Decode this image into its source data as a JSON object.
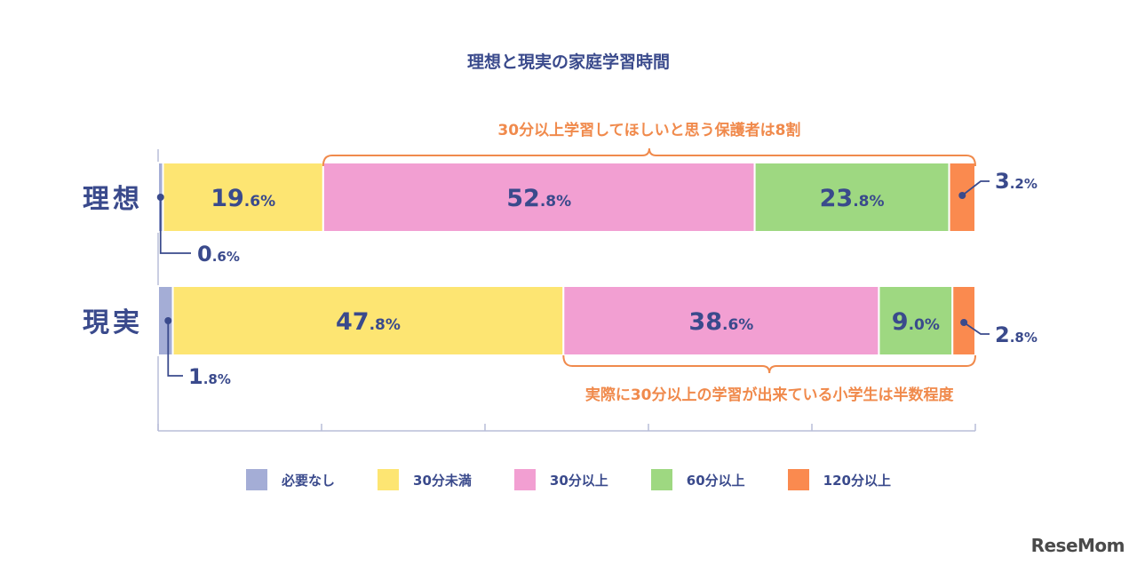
{
  "colors": {
    "none": "#a4add6",
    "under30": "#fde572",
    "over30": "#f29fd2",
    "over60": "#9ed881",
    "over120": "#fa8a4f",
    "text": "#3a4a8c",
    "accent": "#f08a4c",
    "axis": "#b8bdd8"
  },
  "logo": "ReseMom",
  "chart_data": {
    "type": "bar",
    "orientation": "horizontal",
    "stacked": true,
    "title": "理想と現実の家庭学習時間",
    "categories": [
      "理想",
      "現実"
    ],
    "xlim": [
      0,
      100
    ],
    "unit": "%",
    "series": [
      {
        "name": "必要なし",
        "values": [
          0.6,
          1.8
        ]
      },
      {
        "name": "30分未満",
        "values": [
          19.6,
          47.8
        ]
      },
      {
        "name": "30分以上",
        "values": [
          52.8,
          38.6
        ]
      },
      {
        "name": "60分以上",
        "values": [
          23.8,
          9.0
        ]
      },
      {
        "name": "120分以上",
        "values": [
          3.2,
          2.8
        ]
      }
    ],
    "data_labels": [
      [
        "0.6%",
        "19.6%",
        "52.8%",
        "23.8%",
        "3.2%"
      ],
      [
        "1.8%",
        "47.8%",
        "38.6%",
        "9.0%",
        "2.8%"
      ]
    ],
    "annotations": [
      "30分以上学習してほしいと思う保護者は8割",
      "実際に30分以上の学習が出来ている小学生は半数程度"
    ],
    "legend_position": "bottom"
  }
}
